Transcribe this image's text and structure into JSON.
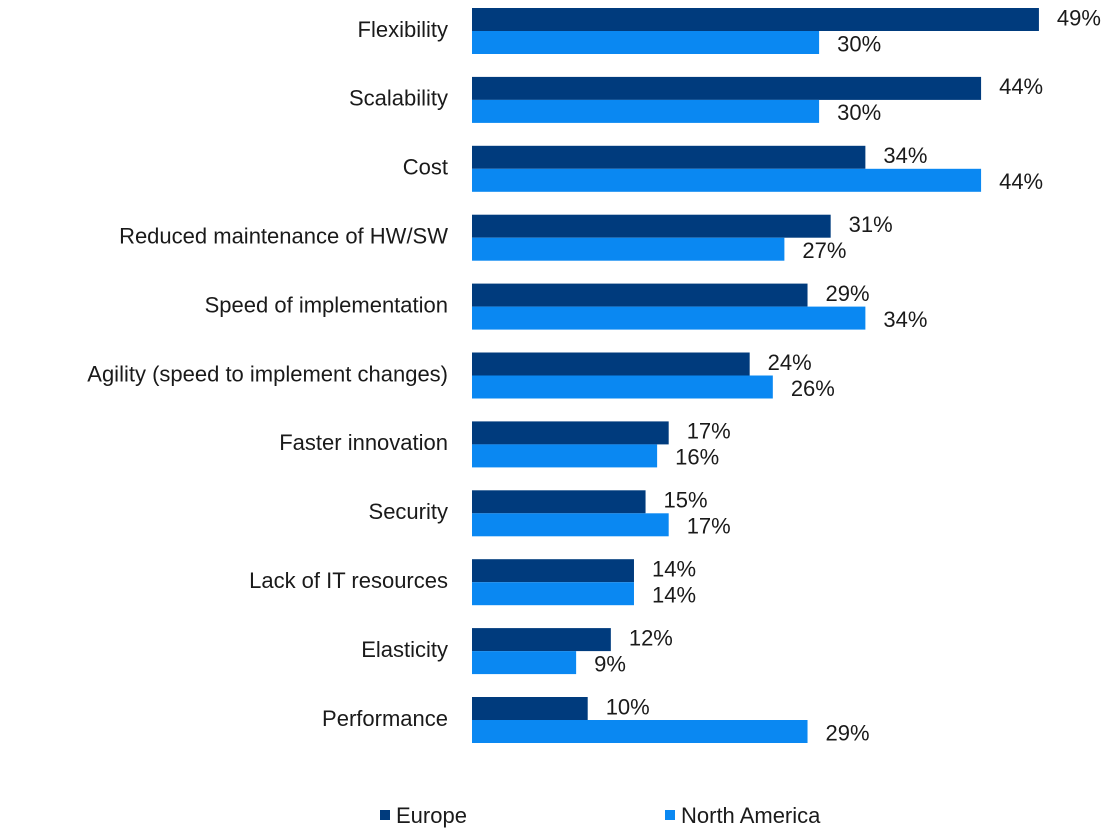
{
  "chart_data": {
    "type": "hbar",
    "categories": [
      "Flexibility",
      "Scalability",
      "Cost",
      "Reduced maintenance of HW/SW",
      "Speed of implementation",
      "Agility (speed to implement changes)",
      "Faster innovation",
      "Security",
      "Lack of IT resources",
      "Elasticity",
      "Performance"
    ],
    "series": [
      {
        "name": "Europe",
        "color": "#003b7d",
        "values": [
          49,
          44,
          34,
          31,
          29,
          24,
          17,
          15,
          14,
          12,
          10
        ],
        "value_labels": [
          "49%",
          "44%",
          "34%",
          "31%",
          "29%",
          "24%",
          "17%",
          "15%",
          "14%",
          "12%",
          "10%"
        ]
      },
      {
        "name": "North America",
        "color": "#0a88f2",
        "values": [
          30,
          30,
          44,
          27,
          34,
          26,
          16,
          17,
          14,
          9,
          29
        ],
        "value_labels": [
          "30%",
          "30%",
          "44%",
          "27%",
          "34%",
          "26%",
          "16%",
          "17%",
          "14%",
          "9%",
          "29%"
        ]
      }
    ],
    "legend": "bottom"
  }
}
